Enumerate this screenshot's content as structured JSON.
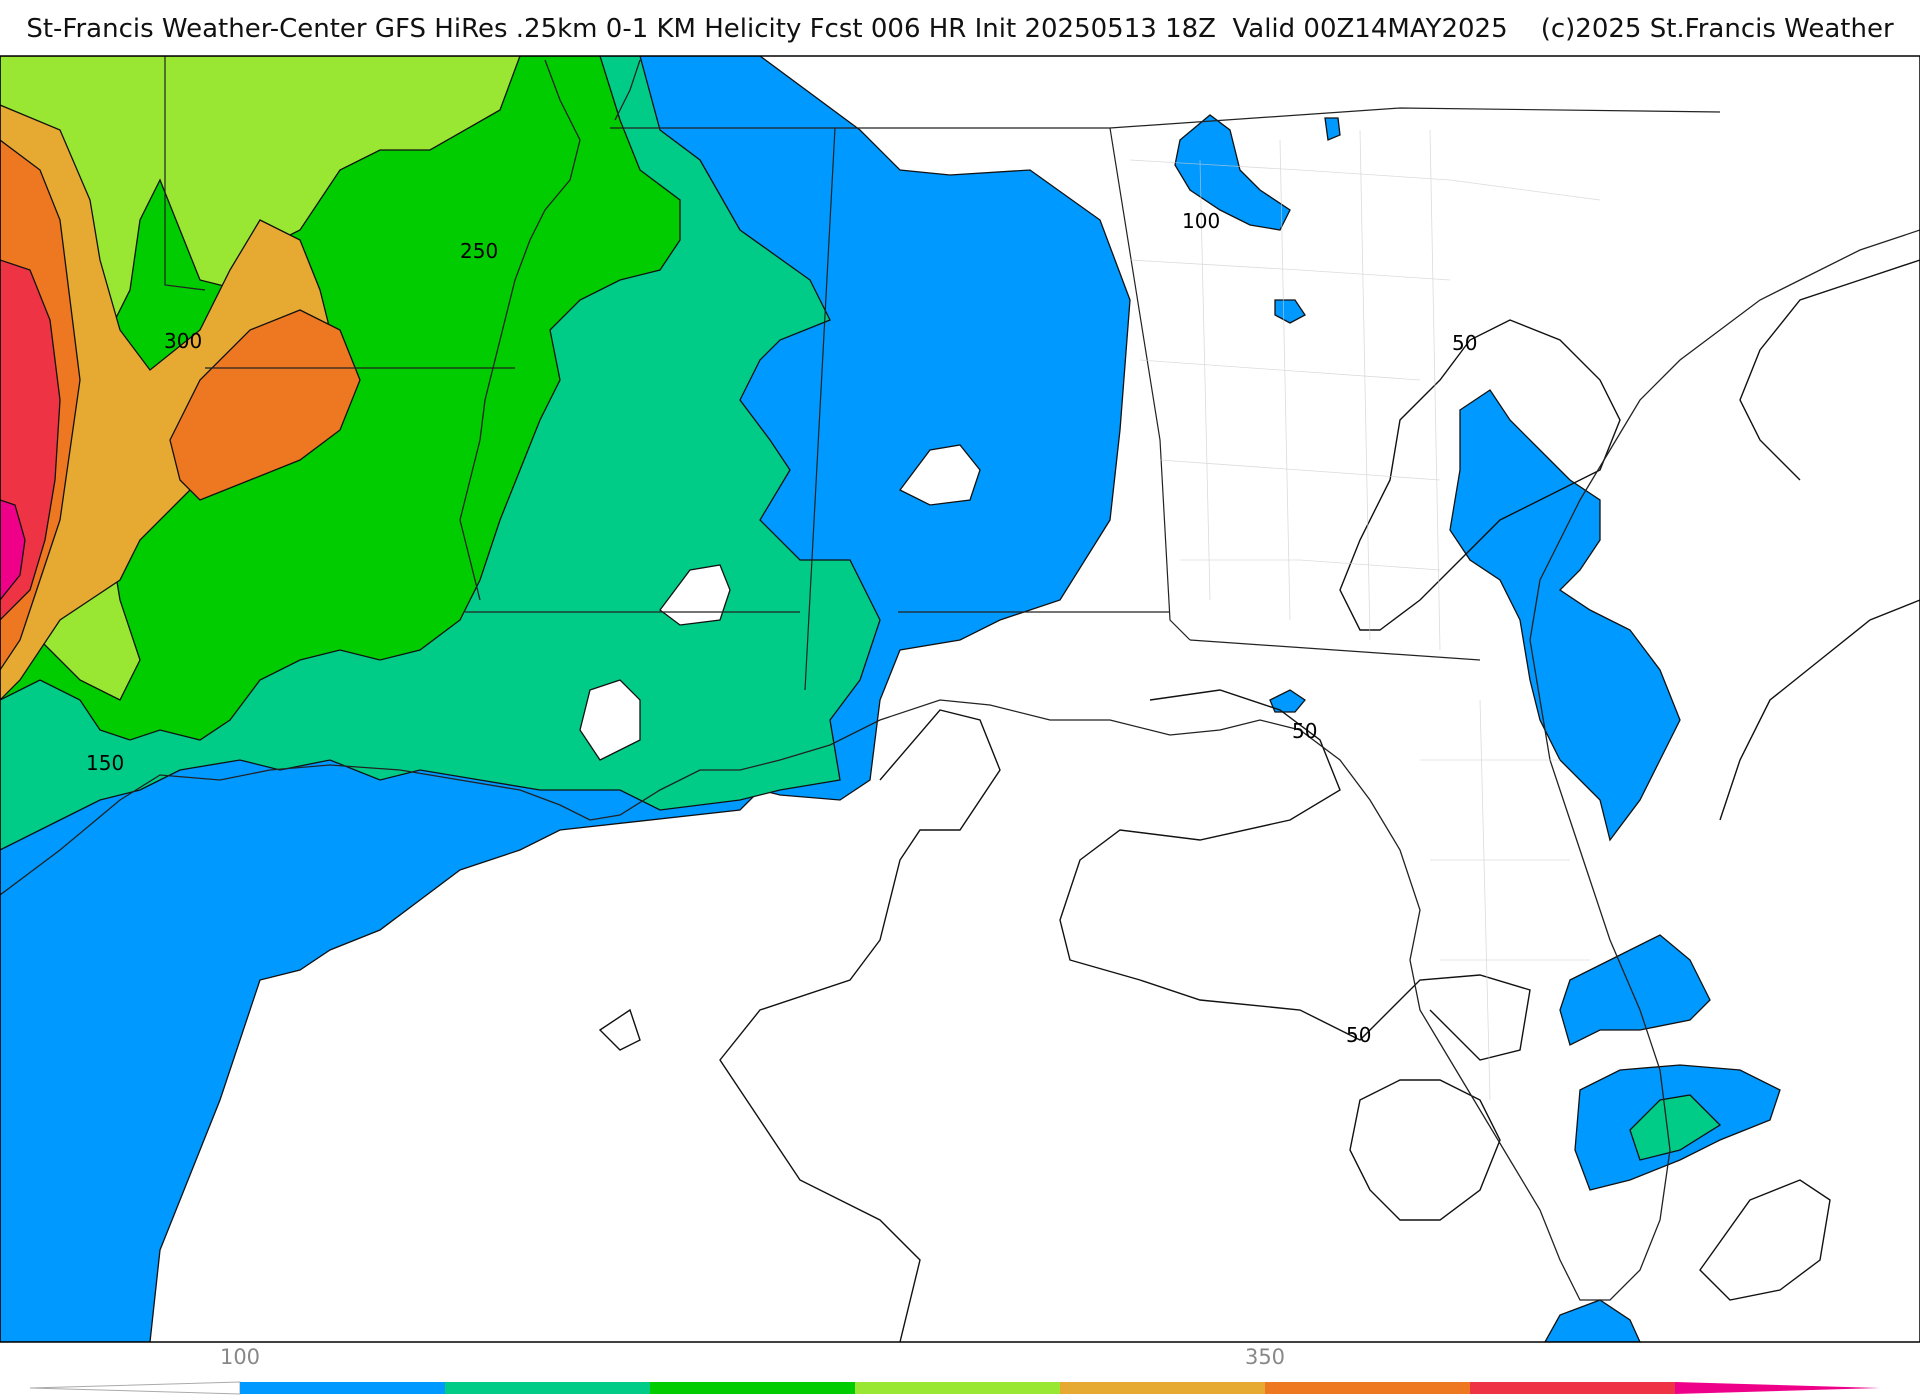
{
  "title": "St-Francis Weather-Center GFS HiRes .25km 0-1 KM Helicity Fcst 006 HR Init 20250513 18Z  Valid 00Z14MAY2025    (c)2025 St.Francis Weather",
  "contour_labels": [
    "250",
    "300",
    "150",
    "100",
    "50",
    "50",
    "50"
  ],
  "colorbar": {
    "tick_labels": [
      "100",
      "350"
    ],
    "colors": [
      "#ffffff",
      "#0099ff",
      "#00cc88",
      "#00cc00",
      "#99e633",
      "#e6aa33",
      "#ee7722",
      "#ee3344",
      "#ee0088"
    ]
  }
}
